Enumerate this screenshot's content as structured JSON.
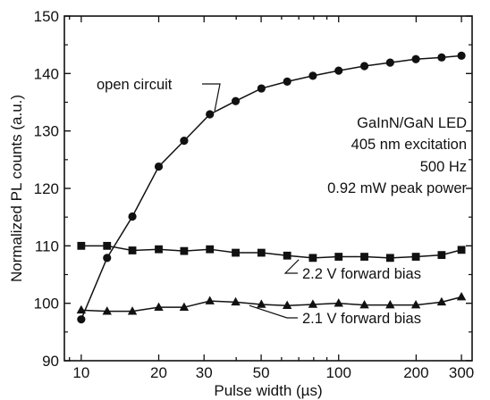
{
  "chart_data": {
    "type": "line",
    "xlabel": "Pulse width (µs)",
    "ylabel": "Normalized PL counts (a.u.)",
    "x_scale": "log",
    "xlim": [
      8.6,
      330
    ],
    "ylim": [
      90,
      150
    ],
    "x_ticks": [
      10,
      20,
      30,
      50,
      100,
      200,
      300
    ],
    "y_ticks": [
      90,
      100,
      110,
      120,
      130,
      140,
      150
    ],
    "grid": false,
    "info_lines": [
      "GaInN/GaN LED",
      "405 nm excitation",
      "500 Hz",
      "0.92 mW peak power"
    ],
    "series": [
      {
        "name": "open circuit",
        "marker": "circle",
        "x": [
          10,
          12.6,
          15.8,
          20,
          25.1,
          31.6,
          39.8,
          50.1,
          63.1,
          79.4,
          100,
          125.9,
          158.5,
          199.5,
          251.2,
          300
        ],
        "values": [
          97.2,
          107.9,
          115.1,
          123.8,
          128.3,
          132.9,
          135.2,
          137.4,
          138.6,
          139.6,
          140.5,
          141.3,
          141.9,
          142.5,
          142.8,
          143.1
        ]
      },
      {
        "name": "2.2 V forward bias",
        "marker": "square",
        "x": [
          10,
          12.6,
          15.8,
          20,
          25.1,
          31.6,
          39.8,
          50.1,
          63.1,
          79.4,
          100,
          125.9,
          158.5,
          199.5,
          251.2,
          300
        ],
        "values": [
          110.0,
          110.0,
          109.2,
          109.4,
          109.1,
          109.4,
          108.8,
          108.8,
          108.3,
          107.9,
          108.1,
          108.1,
          107.9,
          108.1,
          108.4,
          109.3
        ]
      },
      {
        "name": "2.1 V forward bias",
        "marker": "triangle",
        "x": [
          10,
          12.6,
          15.8,
          20,
          25.1,
          31.6,
          39.8,
          50.1,
          63.1,
          79.4,
          100,
          125.9,
          158.5,
          199.5,
          251.2,
          300
        ],
        "values": [
          98.8,
          98.6,
          98.6,
          99.3,
          99.3,
          100.4,
          100.2,
          99.8,
          99.6,
          99.8,
          100.0,
          99.7,
          99.7,
          99.7,
          100.2,
          101.1
        ]
      }
    ]
  }
}
